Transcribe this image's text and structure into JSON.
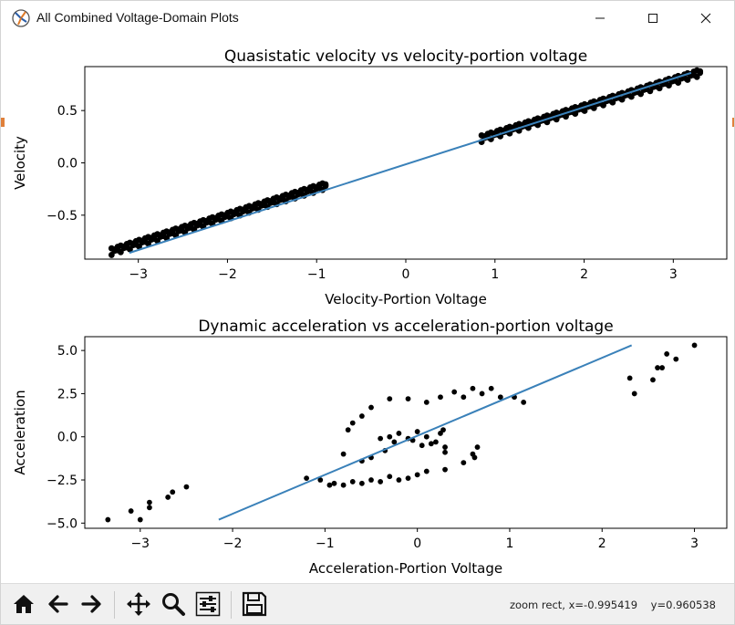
{
  "window": {
    "title": "All Combined Voltage-Domain Plots"
  },
  "colors": {
    "fit_line": "#3a81b9",
    "points": "#000000",
    "axes": "#000000"
  },
  "toolbar": {
    "buttons": [
      "home-icon",
      "back-arrow-icon",
      "forward-arrow-icon",
      "pan-icon",
      "zoom-icon",
      "configure-subplots-icon",
      "save-icon"
    ],
    "status": "zoom rect, x=-0.995419    y=0.960538"
  },
  "chart_data": [
    {
      "type": "scatter",
      "title": "Quasistatic velocity vs velocity-portion voltage",
      "xlabel": "Velocity-Portion Voltage",
      "ylabel": "Velocity",
      "xlim": [
        -3.6,
        3.6
      ],
      "ylim": [
        -0.92,
        0.92
      ],
      "xticks": [
        -3,
        -2,
        -1,
        0,
        1,
        2,
        3
      ],
      "yticks": [
        -0.5,
        0.0,
        0.5
      ],
      "xtick_labels": [
        "−3",
        "−2",
        "−1",
        "0",
        "1",
        "2",
        "3"
      ],
      "ytick_labels": [
        "−0.5",
        "0.0",
        "0.5"
      ],
      "grid": false,
      "point_bands": [
        {
          "x": [
            -3.3,
            -0.9
          ],
          "y": [
            -0.85,
            -0.22
          ],
          "width": 0.06
        },
        {
          "x": [
            0.85,
            3.3
          ],
          "y": [
            0.23,
            0.86
          ],
          "width": 0.06
        }
      ],
      "fit_line": {
        "x": [
          -3.1,
          3.2
        ],
        "y": [
          -0.86,
          0.86
        ]
      }
    },
    {
      "type": "scatter",
      "title": "Dynamic acceleration vs acceleration-portion voltage",
      "xlabel": "Acceleration-Portion Voltage",
      "ylabel": "Acceleration",
      "xlim": [
        -3.6,
        3.35
      ],
      "ylim": [
        -5.3,
        5.8
      ],
      "xticks": [
        -3,
        -2,
        -1,
        0,
        1,
        2,
        3
      ],
      "yticks": [
        -5.0,
        -2.5,
        0.0,
        2.5,
        5.0
      ],
      "xtick_labels": [
        "−3",
        "−2",
        "−1",
        "0",
        "1",
        "2",
        "3"
      ],
      "ytick_labels": [
        "−5.0",
        "−2.5",
        "0.0",
        "2.5",
        "5.0"
      ],
      "grid": false,
      "points": [
        [
          -3.35,
          -4.8
        ],
        [
          -3.1,
          -4.3
        ],
        [
          -3.0,
          -4.8
        ],
        [
          -2.9,
          -4.1
        ],
        [
          -2.9,
          -3.8
        ],
        [
          -2.7,
          -3.5
        ],
        [
          -2.65,
          -3.2
        ],
        [
          -2.5,
          -2.9
        ],
        [
          -1.2,
          -2.4
        ],
        [
          -1.05,
          -2.5
        ],
        [
          -0.95,
          -2.8
        ],
        [
          -0.9,
          -2.7
        ],
        [
          -0.8,
          -2.8
        ],
        [
          -0.7,
          -2.6
        ],
        [
          -0.6,
          -2.7
        ],
        [
          -0.5,
          -2.5
        ],
        [
          -0.4,
          -2.6
        ],
        [
          -0.3,
          -2.3
        ],
        [
          -0.2,
          -2.5
        ],
        [
          -0.1,
          -2.4
        ],
        [
          0.0,
          -2.2
        ],
        [
          0.1,
          -2.0
        ],
        [
          0.3,
          -1.9
        ],
        [
          0.5,
          -1.5
        ],
        [
          0.6,
          -1.0
        ],
        [
          0.65,
          -0.6
        ],
        [
          0.62,
          -1.2
        ],
        [
          -0.8,
          -1.0
        ],
        [
          -0.6,
          -1.4
        ],
        [
          -0.5,
          -1.2
        ],
        [
          -0.35,
          -0.8
        ],
        [
          -0.75,
          0.4
        ],
        [
          -0.7,
          0.8
        ],
        [
          -0.6,
          1.2
        ],
        [
          -0.5,
          1.7
        ],
        [
          -0.3,
          2.2
        ],
        [
          -0.1,
          2.2
        ],
        [
          0.1,
          2.0
        ],
        [
          0.25,
          2.3
        ],
        [
          0.4,
          2.6
        ],
        [
          0.5,
          2.3
        ],
        [
          0.6,
          2.8
        ],
        [
          0.7,
          2.5
        ],
        [
          0.8,
          2.8
        ],
        [
          0.9,
          2.3
        ],
        [
          1.05,
          2.3
        ],
        [
          1.15,
          2.0
        ],
        [
          -0.4,
          -0.1
        ],
        [
          -0.3,
          0.0
        ],
        [
          -0.2,
          0.2
        ],
        [
          -0.1,
          -0.1
        ],
        [
          0.0,
          0.3
        ],
        [
          0.1,
          0.0
        ],
        [
          0.2,
          -0.3
        ],
        [
          0.25,
          0.2
        ],
        [
          0.3,
          -0.6
        ],
        [
          0.3,
          -0.9
        ],
        [
          0.15,
          -0.4
        ],
        [
          -0.05,
          -0.2
        ],
        [
          -0.25,
          -0.3
        ],
        [
          0.05,
          -0.5
        ],
        [
          0.28,
          0.4
        ],
        [
          2.3,
          3.4
        ],
        [
          2.35,
          2.5
        ],
        [
          2.55,
          3.3
        ],
        [
          2.6,
          4.0
        ],
        [
          2.65,
          4.0
        ],
        [
          2.7,
          4.8
        ],
        [
          2.8,
          4.5
        ],
        [
          3.0,
          5.3
        ]
      ],
      "fit_line": {
        "x": [
          -2.15,
          2.32
        ],
        "y": [
          -4.8,
          5.3
        ]
      }
    }
  ]
}
